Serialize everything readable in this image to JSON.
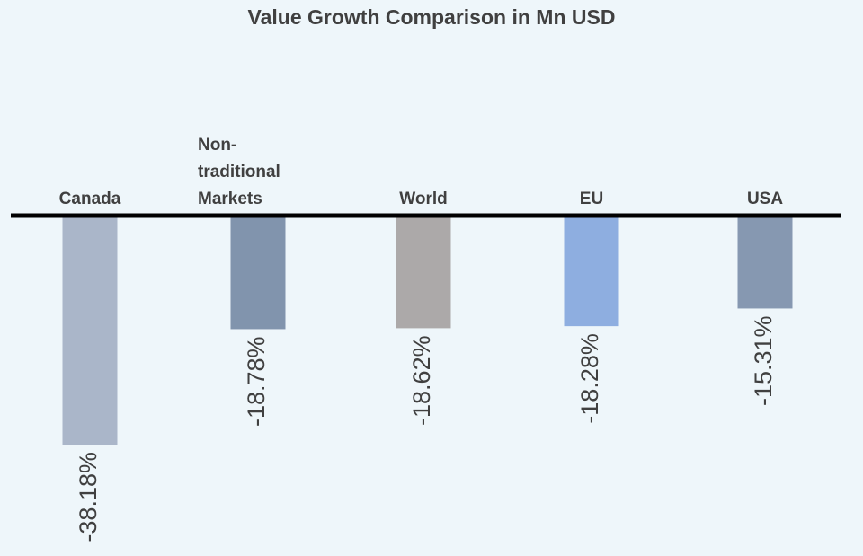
{
  "chart_data": {
    "type": "bar",
    "title": "Value Growth Comparison in Mn USD",
    "xlabel": "",
    "ylabel": "",
    "categories": [
      "Canada",
      "Non-traditional Markets",
      "World",
      "EU",
      "USA"
    ],
    "category_lines": [
      [
        "Canada"
      ],
      [
        "Non-",
        "traditional",
        "Markets"
      ],
      [
        "World"
      ],
      [
        "EU"
      ],
      [
        "USA"
      ]
    ],
    "values": [
      -38.18,
      -18.78,
      -18.62,
      -18.28,
      -15.31
    ],
    "data_labels": [
      "-38.18%",
      "-18.78%",
      "-18.62%",
      "-18.28%",
      "-15.31%"
    ],
    "colors": [
      "#aab6c9",
      "#8194ad",
      "#aca9a9",
      "#8eaee0",
      "#8698b1"
    ],
    "ylim": [
      -40,
      0
    ],
    "grid": false,
    "legend": "none"
  }
}
